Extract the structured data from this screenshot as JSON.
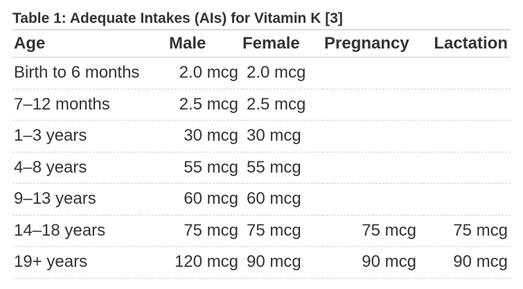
{
  "table": {
    "caption": "Table 1: Adequate Intakes (AIs) for Vitamin K [3]",
    "headers": {
      "age": "Age",
      "male": "Male",
      "female": "Female",
      "pregnancy": "Pregnancy",
      "lactation": "Lactation"
    },
    "rows": [
      {
        "age": "Birth to 6 months",
        "male": "2.0 mcg",
        "female": "2.0 mcg",
        "pregnancy": "",
        "lactation": ""
      },
      {
        "age": "7–12 months",
        "male": "2.5 mcg",
        "female": "2.5 mcg",
        "pregnancy": "",
        "lactation": ""
      },
      {
        "age": "1–3 years",
        "male": "30 mcg",
        "female": "30 mcg",
        "pregnancy": "",
        "lactation": ""
      },
      {
        "age": "4–8 years",
        "male": "55 mcg",
        "female": "55 mcg",
        "pregnancy": "",
        "lactation": ""
      },
      {
        "age": "9–13 years",
        "male": "60 mcg",
        "female": "60 mcg",
        "pregnancy": "",
        "lactation": ""
      },
      {
        "age": "14–18 years",
        "male": "75 mcg",
        "female": "75 mcg",
        "pregnancy": "75 mcg",
        "lactation": "75 mcg"
      },
      {
        "age": "19+ years",
        "male": "120 mcg",
        "female": "90 mcg",
        "pregnancy": "90 mcg",
        "lactation": "90 mcg"
      }
    ]
  }
}
